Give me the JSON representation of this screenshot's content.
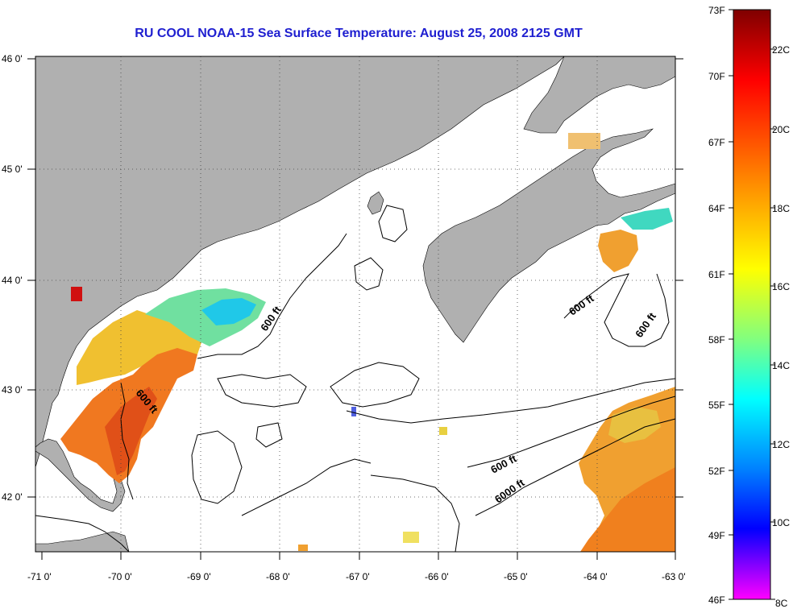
{
  "title": "RU COOL  NOAA-15  Sea Surface Temperature:  August 25, 2008 2125 GMT",
  "map": {
    "lon_labels": [
      "-71 0'",
      "-70 0'",
      "-69 0'",
      "-68 0'",
      "-67 0'",
      "-66 0'",
      "-65 0'",
      "-64 0'",
      "-63 0'"
    ],
    "lat_labels": [
      "46 0'",
      "45 0'",
      "44 0'",
      "43 0'",
      "42 0'"
    ],
    "land_color": "#b0b0b0",
    "contour_labels": [
      "600 ft",
      "600 ft",
      "600 ft",
      "600 ft",
      "600 ft",
      "6000 ft"
    ]
  },
  "colorbar": {
    "fahrenheit_labels": [
      "73F",
      "70F",
      "67F",
      "64F",
      "61F",
      "58F",
      "55F",
      "52F",
      "49F",
      "46F"
    ],
    "celsius_labels": [
      "22C",
      "20C",
      "18C",
      "16C",
      "14C",
      "12C",
      "10C",
      "8C"
    ],
    "colors": [
      "#7f0000",
      "#ff0000",
      "#ff8000",
      "#ffff00",
      "#80ff80",
      "#00ffff",
      "#0080ff",
      "#0000ff",
      "#8000ff",
      "#ff00ff"
    ]
  }
}
